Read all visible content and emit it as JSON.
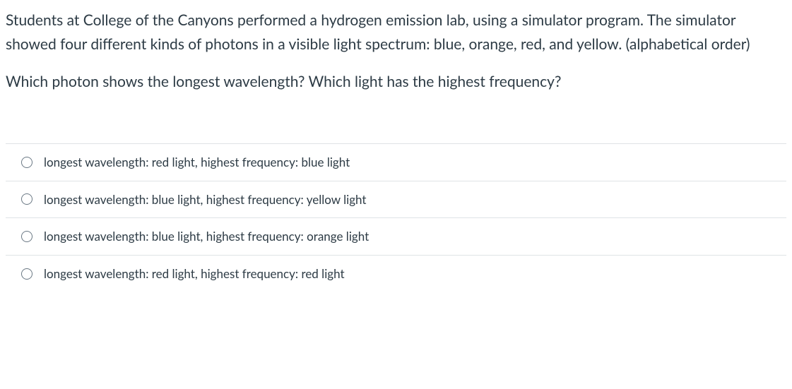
{
  "question": {
    "paragraph1": "Students at College of the Canyons performed a hydrogen emission lab, using a simulator program. The simulator showed four different kinds of photons in a visible light spectrum: blue, orange, red,  and yellow. (alphabetical order)",
    "paragraph2": "Which photon shows the longest wavelength? Which light has the highest frequency?",
    "text_color": "#2d3b45",
    "fontsize_question": 21,
    "fontsize_option": 17,
    "background_color": "#ffffff",
    "divider_color": "#dfe3e6",
    "radio_border_color": "#6a7884"
  },
  "options": [
    {
      "label": "longest wavelength: red light, highest frequency: blue light"
    },
    {
      "label": "longest wavelength: blue light, highest frequency: yellow light"
    },
    {
      "label": "longest wavelength: blue light, highest frequency: orange light"
    },
    {
      "label": "longest wavelength: red light, highest frequency: red light"
    }
  ]
}
